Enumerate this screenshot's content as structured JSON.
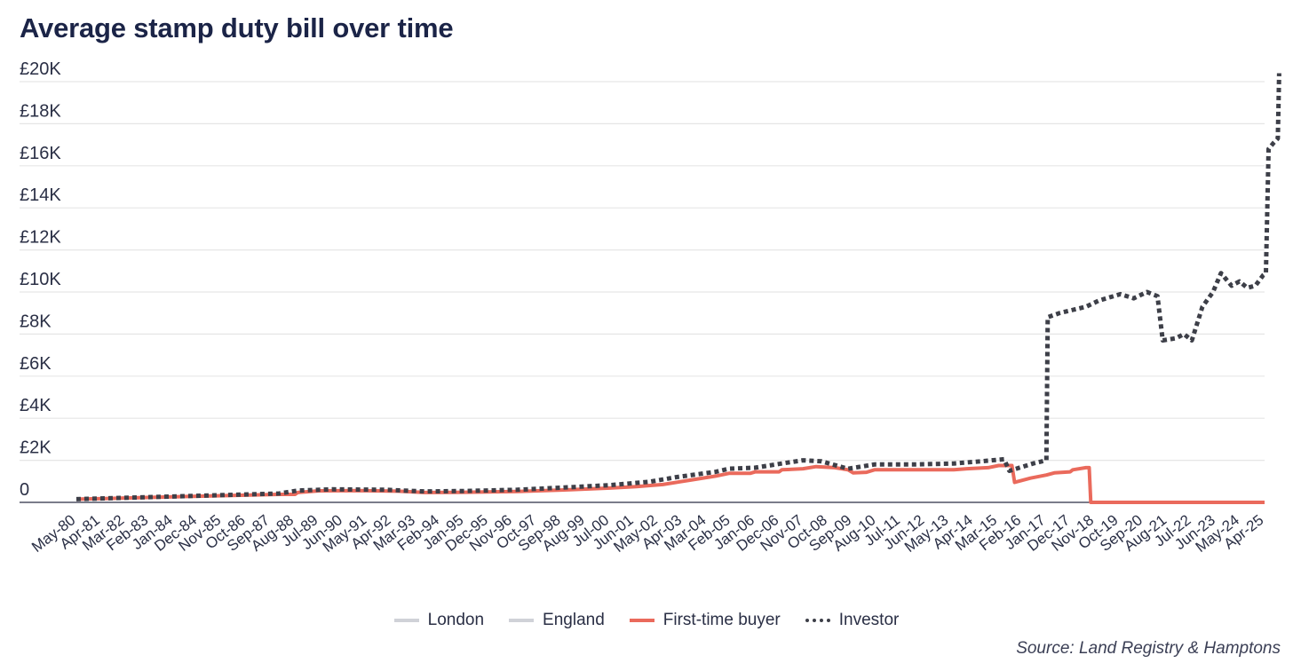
{
  "chart_data": {
    "type": "line",
    "title": "Average stamp duty bill over time",
    "xlabel": "",
    "ylabel": "",
    "ylim": [
      0,
      20000
    ],
    "y_ticks": [
      0,
      2000,
      4000,
      6000,
      8000,
      10000,
      12000,
      14000,
      16000,
      18000,
      20000
    ],
    "y_tick_labels": [
      "0",
      "£2K",
      "£4K",
      "£6K",
      "£8K",
      "£10K",
      "£12K",
      "£14K",
      "£16K",
      "£18K",
      "£20K"
    ],
    "x_range": [
      1980.33,
      2025.25
    ],
    "x_ticks": [
      {
        "label": "May-80",
        "x": 1980.33
      },
      {
        "label": "Apr-81",
        "x": 1981.25
      },
      {
        "label": "Mar-82",
        "x": 1982.17
      },
      {
        "label": "Feb-83",
        "x": 1983.08
      },
      {
        "label": "Jan-84",
        "x": 1984.0
      },
      {
        "label": "Dec-84",
        "x": 1984.92
      },
      {
        "label": "Nov-85",
        "x": 1985.83
      },
      {
        "label": "Oct-86",
        "x": 1986.75
      },
      {
        "label": "Sep-87",
        "x": 1987.67
      },
      {
        "label": "Aug-88",
        "x": 1988.58
      },
      {
        "label": "Jul-89",
        "x": 1989.5
      },
      {
        "label": "Jun-90",
        "x": 1990.42
      },
      {
        "label": "May-91",
        "x": 1991.33
      },
      {
        "label": "Apr-92",
        "x": 1992.25
      },
      {
        "label": "Mar-93",
        "x": 1993.17
      },
      {
        "label": "Feb-94",
        "x": 1994.08
      },
      {
        "label": "Jan-95",
        "x": 1995.0
      },
      {
        "label": "Dec-95",
        "x": 1995.92
      },
      {
        "label": "Nov-96",
        "x": 1996.83
      },
      {
        "label": "Oct-97",
        "x": 1997.75
      },
      {
        "label": "Sep-98",
        "x": 1998.67
      },
      {
        "label": "Aug-99",
        "x": 1999.58
      },
      {
        "label": "Jul-00",
        "x": 2000.5
      },
      {
        "label": "Jun-01",
        "x": 2001.42
      },
      {
        "label": "May-02",
        "x": 2002.33
      },
      {
        "label": "Apr-03",
        "x": 2003.25
      },
      {
        "label": "Mar-04",
        "x": 2004.17
      },
      {
        "label": "Feb-05",
        "x": 2005.08
      },
      {
        "label": "Jan-06",
        "x": 2006.0
      },
      {
        "label": "Dec-06",
        "x": 2006.92
      },
      {
        "label": "Nov-07",
        "x": 2007.83
      },
      {
        "label": "Oct-08",
        "x": 2008.75
      },
      {
        "label": "Sep-09",
        "x": 2009.67
      },
      {
        "label": "Aug-10",
        "x": 2010.58
      },
      {
        "label": "Jul-11",
        "x": 2011.5
      },
      {
        "label": "Jun-12",
        "x": 2012.42
      },
      {
        "label": "May-13",
        "x": 2013.33
      },
      {
        "label": "Apr-14",
        "x": 2014.25
      },
      {
        "label": "Mar-15",
        "x": 2015.17
      },
      {
        "label": "Feb-16",
        "x": 2016.08
      },
      {
        "label": "Jan-17",
        "x": 2017.0
      },
      {
        "label": "Dec-17",
        "x": 2017.92
      },
      {
        "label": "Nov-18",
        "x": 2018.83
      },
      {
        "label": "Oct-19",
        "x": 2019.75
      },
      {
        "label": "Sep-20",
        "x": 2020.67
      },
      {
        "label": "Aug-21",
        "x": 2021.58
      },
      {
        "label": "Jul-22",
        "x": 2022.5
      },
      {
        "label": "Jun-23",
        "x": 2023.42
      },
      {
        "label": "May-24",
        "x": 2024.33
      },
      {
        "label": "Apr-25",
        "x": 2025.25
      }
    ],
    "grid": true,
    "legend_position": "bottom-center",
    "series": [
      {
        "name": "London",
        "color": "#d0d2d8",
        "style": "solid",
        "points": []
      },
      {
        "name": "England",
        "color": "#d0d2d8",
        "style": "solid",
        "points": []
      },
      {
        "name": "First-time buyer",
        "color": "#ea6a5c",
        "style": "solid",
        "points": [
          [
            1980.33,
            150
          ],
          [
            1982.0,
            200
          ],
          [
            1984.0,
            260
          ],
          [
            1986.0,
            320
          ],
          [
            1988.0,
            380
          ],
          [
            1988.6,
            380
          ],
          [
            1988.7,
            470
          ],
          [
            1989.5,
            550
          ],
          [
            1991.0,
            560
          ],
          [
            1992.5,
            530
          ],
          [
            1993.5,
            470
          ],
          [
            1995.0,
            480
          ],
          [
            1997.0,
            520
          ],
          [
            1999.0,
            600
          ],
          [
            2000.5,
            680
          ],
          [
            2001.5,
            750
          ],
          [
            2002.5,
            850
          ],
          [
            2003.5,
            1050
          ],
          [
            2004.5,
            1250
          ],
          [
            2005.0,
            1380
          ],
          [
            2005.8,
            1380
          ],
          [
            2006.0,
            1450
          ],
          [
            2006.9,
            1450
          ],
          [
            2007.0,
            1550
          ],
          [
            2007.8,
            1600
          ],
          [
            2008.3,
            1700
          ],
          [
            2009.0,
            1650
          ],
          [
            2009.5,
            1550
          ],
          [
            2009.7,
            1400
          ],
          [
            2010.2,
            1430
          ],
          [
            2010.5,
            1550
          ],
          [
            2012.0,
            1550
          ],
          [
            2013.5,
            1550
          ],
          [
            2014.0,
            1600
          ],
          [
            2014.8,
            1650
          ],
          [
            2015.2,
            1750
          ],
          [
            2015.7,
            1750
          ],
          [
            2015.8,
            950
          ],
          [
            2016.4,
            1150
          ],
          [
            2017.0,
            1300
          ],
          [
            2017.3,
            1400
          ],
          [
            2017.9,
            1450
          ],
          [
            2018.0,
            1550
          ],
          [
            2018.5,
            1650
          ],
          [
            2018.62,
            1650
          ],
          [
            2018.68,
            0
          ],
          [
            2020.0,
            0
          ],
          [
            2022.0,
            0
          ],
          [
            2024.0,
            0
          ],
          [
            2025.25,
            0
          ]
        ]
      },
      {
        "name": "Investor",
        "color": "#3d3f48",
        "style": "dotted",
        "points": [
          [
            1980.33,
            150
          ],
          [
            1982.0,
            210
          ],
          [
            1984.0,
            280
          ],
          [
            1986.0,
            350
          ],
          [
            1988.0,
            420
          ],
          [
            1988.7,
            560
          ],
          [
            1990.0,
            620
          ],
          [
            1992.0,
            600
          ],
          [
            1993.5,
            520
          ],
          [
            1995.0,
            540
          ],
          [
            1997.0,
            600
          ],
          [
            1999.0,
            720
          ],
          [
            2000.5,
            820
          ],
          [
            2002.0,
            980
          ],
          [
            2003.0,
            1200
          ],
          [
            2004.5,
            1450
          ],
          [
            2005.0,
            1600
          ],
          [
            2006.0,
            1650
          ],
          [
            2007.0,
            1850
          ],
          [
            2007.8,
            2000
          ],
          [
            2008.5,
            1950
          ],
          [
            2009.5,
            1600
          ],
          [
            2010.5,
            1800
          ],
          [
            2012.0,
            1800
          ],
          [
            2013.5,
            1850
          ],
          [
            2014.5,
            1950
          ],
          [
            2015.4,
            2050
          ],
          [
            2015.6,
            1500
          ],
          [
            2016.5,
            1850
          ],
          [
            2017.0,
            2000
          ],
          [
            2017.05,
            8800
          ],
          [
            2017.5,
            9000
          ],
          [
            2018.5,
            9300
          ],
          [
            2019.0,
            9600
          ],
          [
            2019.8,
            9900
          ],
          [
            2020.3,
            9700
          ],
          [
            2020.8,
            10000
          ],
          [
            2021.2,
            9800
          ],
          [
            2021.4,
            7700
          ],
          [
            2021.9,
            7800
          ],
          [
            2022.2,
            8000
          ],
          [
            2022.5,
            7700
          ],
          [
            2022.9,
            9300
          ],
          [
            2023.3,
            10000
          ],
          [
            2023.6,
            10900
          ],
          [
            2024.0,
            10300
          ],
          [
            2024.3,
            10500
          ],
          [
            2024.6,
            10200
          ],
          [
            2024.9,
            10300
          ],
          [
            2025.2,
            10800
          ],
          [
            2025.3,
            10900
          ],
          [
            2025.4,
            16800
          ],
          [
            2025.6,
            17100
          ],
          [
            2025.75,
            17300
          ],
          [
            2025.8,
            20400
          ]
        ]
      }
    ],
    "annotations": [
      "Source: Land Registry & Hamptons"
    ]
  },
  "legend": {
    "items": [
      {
        "name": "London",
        "color": "#d0d2d8",
        "style": "solid"
      },
      {
        "name": "England",
        "color": "#d0d2d8",
        "style": "solid"
      },
      {
        "name": "First-time buyer",
        "color": "#ea6a5c",
        "style": "solid"
      },
      {
        "name": "Investor",
        "color": "#3d3f48",
        "style": "dotted"
      }
    ]
  },
  "source": "Source: Land Registry & Hamptons"
}
